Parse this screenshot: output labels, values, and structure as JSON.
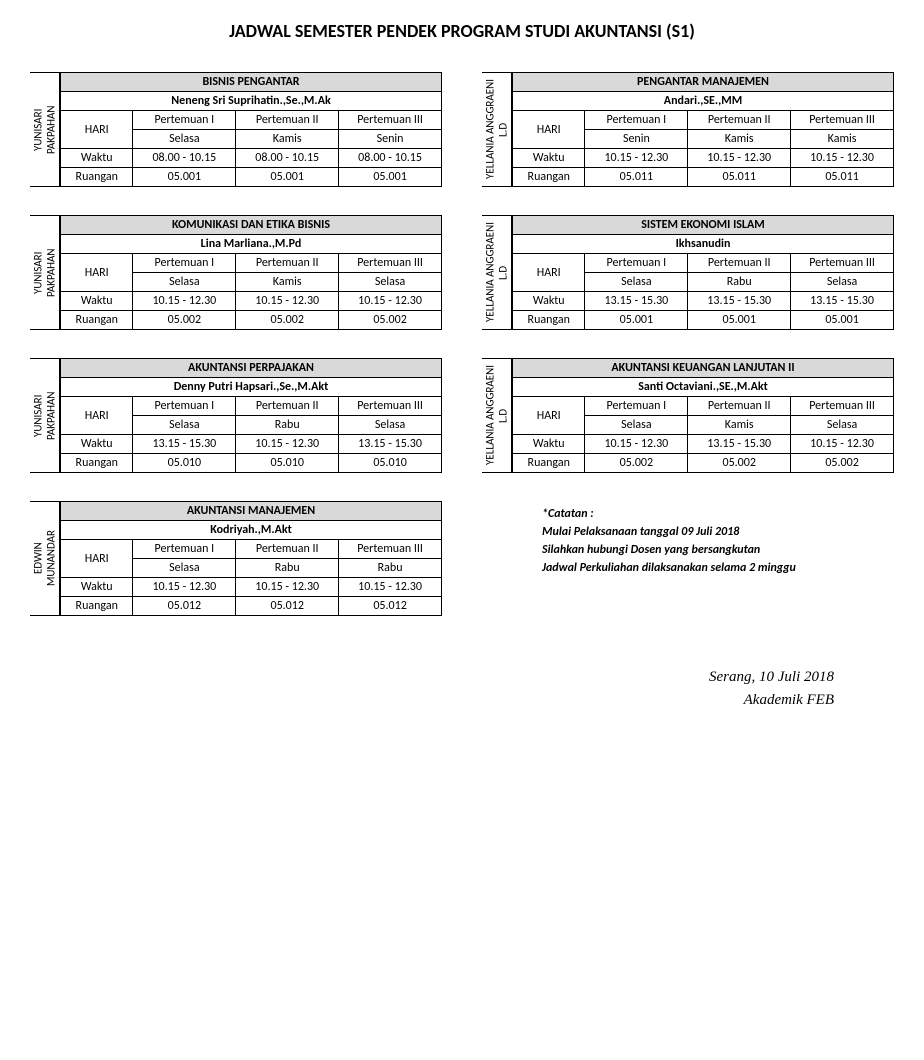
{
  "title": "JADWAL SEMESTER PENDEK PROGRAM STUDI AKUNTANSI (S1)",
  "labels": {
    "hari": "HARI",
    "waktu": "Waktu",
    "ruangan": "Ruangan",
    "p1": "Pertemuan I",
    "p2": "Pertemuan II",
    "p3": "Pertemuan III"
  },
  "blocks": [
    {
      "owner": "YUNISARI PAKPAHAN",
      "course": "BISNIS PENGANTAR",
      "lecturer": "Neneng Sri Suprihatin.,Se.,M.Ak",
      "days": [
        "Selasa",
        "Kamis",
        "Senin"
      ],
      "times": [
        "08.00 - 10.15",
        "08.00 - 10.15",
        "08.00 - 10.15"
      ],
      "rooms": [
        "05.001",
        "05.001",
        "05.001"
      ]
    },
    {
      "owner": "YELLANIA ANGGRAENI L.D",
      "course": "PENGANTAR MANAJEMEN",
      "lecturer": "Andari.,SE.,MM",
      "days": [
        "Senin",
        "Kamis",
        "Kamis"
      ],
      "times": [
        "10.15 - 12.30",
        "10.15 - 12.30",
        "10.15 - 12.30"
      ],
      "rooms": [
        "05.011",
        "05.011",
        "05.011"
      ]
    },
    {
      "owner": "YUNISARI PAKPAHAN",
      "course": "KOMUNIKASI DAN ETIKA BISNIS",
      "lecturer": "Lina Marliana.,M.Pd",
      "days": [
        "Selasa",
        "Kamis",
        "Selasa"
      ],
      "times": [
        "10.15 - 12.30",
        "10.15 - 12.30",
        "10.15 - 12.30"
      ],
      "rooms": [
        "05.002",
        "05.002",
        "05.002"
      ]
    },
    {
      "owner": "YELLANIA ANGGRAENI L.D",
      "course": "SISTEM EKONOMI ISLAM",
      "lecturer": "Ikhsanudin",
      "days": [
        "Selasa",
        "Rabu",
        "Selasa"
      ],
      "times": [
        "13.15 - 15.30",
        "13.15 - 15.30",
        "13.15 - 15.30"
      ],
      "rooms": [
        "05.001",
        "05.001",
        "05.001"
      ]
    },
    {
      "owner": "YUNISARI PAKPAHAN",
      "course": "AKUNTANSI PERPAJAKAN",
      "lecturer": "Denny Putri Hapsari.,Se.,M.Akt",
      "days": [
        "Selasa",
        "Rabu",
        "Selasa"
      ],
      "times": [
        "13.15 - 15.30",
        "10.15 - 12.30",
        "13.15 - 15.30"
      ],
      "rooms": [
        "05.010",
        "05.010",
        "05.010"
      ]
    },
    {
      "owner": "YELLANIA ANGGRAENI L.D",
      "course": "AKUNTANSI KEUANGAN LANJUTAN II",
      "lecturer": "Santi Octaviani.,SE.,M.Akt",
      "days": [
        "Selasa",
        "Kamis",
        "Selasa"
      ],
      "times": [
        "10.15 - 12.30",
        "13.15 - 15.30",
        "10.15 - 12.30"
      ],
      "rooms": [
        "05.002",
        "05.002",
        "05.002"
      ]
    },
    {
      "owner": "EDWIN MUNANDAR",
      "course": "AKUNTANSI MANAJEMEN",
      "lecturer": "Kodriyah.,M.Akt",
      "days": [
        "Selasa",
        "Rabu",
        "Rabu"
      ],
      "times": [
        "10.15 - 12.30",
        "10.15 - 12.30",
        "10.15 - 12.30"
      ],
      "rooms": [
        "05.012",
        "05.012",
        "05.012"
      ]
    }
  ],
  "notes": [
    "*Catatan :",
    "Mulai Pelaksanaan tanggal 09 Juli 2018",
    "Silahkan hubungi Dosen yang bersangkutan",
    "Jadwal Perkuliahan dilaksanakan selama 2 minggu"
  ],
  "sign": {
    "place": "Serang, 10 Juli 2018",
    "dept": "Akademik FEB"
  }
}
